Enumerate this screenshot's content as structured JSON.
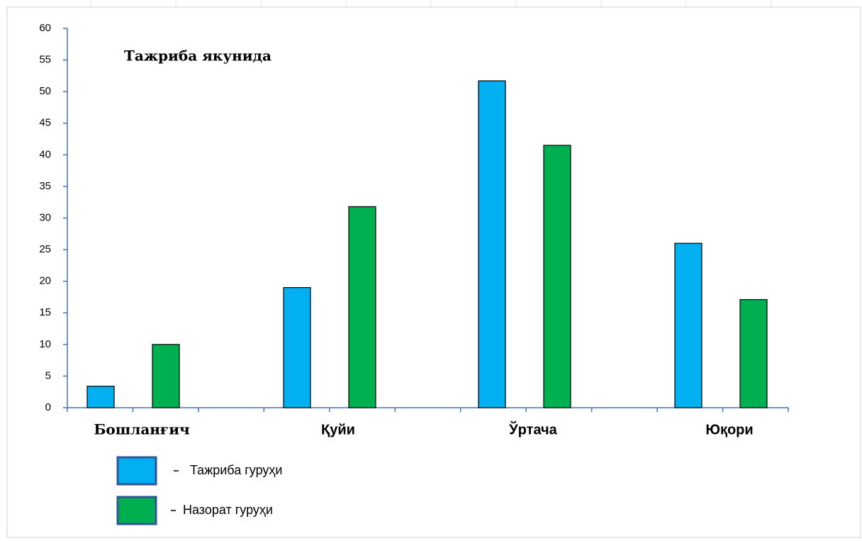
{
  "chart_data": {
    "type": "bar",
    "title": "Тажриба якунида",
    "categories": [
      "Бошланғич",
      "Қуйи",
      "Ўртача",
      "Юқори"
    ],
    "series": [
      {
        "name": "Тажриба гуруҳи",
        "color": "#00b0f0",
        "values": [
          3.4,
          19,
          51.7,
          26
        ]
      },
      {
        "name": "Назорат гуруҳи",
        "color": "#00b050",
        "values": [
          10,
          31.8,
          41.5,
          17.1
        ]
      }
    ],
    "ylim": [
      0,
      60
    ],
    "yticks": [
      0,
      5,
      10,
      15,
      20,
      25,
      30,
      35,
      40,
      45,
      50,
      55,
      60
    ]
  }
}
